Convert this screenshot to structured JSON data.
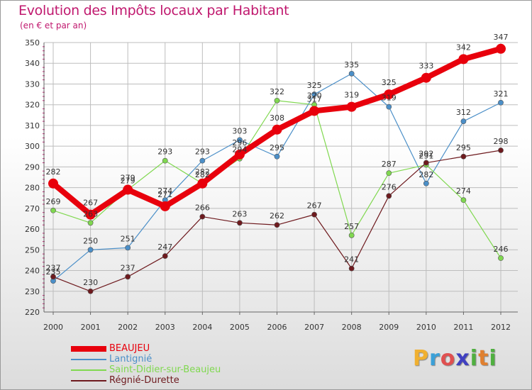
{
  "title": "Evolution des Impôts locaux par Habitant",
  "subtitle": "(en € et par an)",
  "brand": {
    "text": "Proxiti",
    "letters": [
      "P",
      "r",
      "o",
      "x",
      "i",
      "t",
      "i"
    ],
    "colors": [
      "#f0b030",
      "#3aa0d8",
      "#e05050",
      "#4040c0",
      "#50b040",
      "#e08030",
      "#50b040"
    ]
  },
  "chart_data": {
    "type": "line",
    "title": "Evolution des Impôts locaux par Habitant",
    "subtitle": "(en € et par an)",
    "xlabel": "",
    "ylabel": "",
    "ylim": [
      220,
      350
    ],
    "yticks": [
      "220",
      "230",
      "240",
      "250",
      "260",
      "270",
      "280",
      "290",
      "300",
      "310",
      "320",
      "330",
      "340",
      "350"
    ],
    "categories": [
      "2000",
      "2001",
      "2002",
      "2003",
      "2004",
      "2005",
      "2006",
      "2007",
      "2008",
      "2009",
      "2010",
      "2011",
      "2012"
    ],
    "grid": true,
    "legend_position": "bottom-left",
    "series": [
      {
        "name": "BEAUJEU",
        "color": "#e8000c",
        "values": [
          282,
          267,
          279,
          271,
          282,
          296,
          308,
          317,
          319,
          325,
          333,
          342,
          347
        ],
        "labels": [
          "282",
          "267",
          "279",
          "271",
          "282",
          "296",
          "308",
          "317",
          "319",
          "325",
          "333",
          "342",
          "347"
        ]
      },
      {
        "name": "Lantignié",
        "color": "#4b8fc8",
        "values": [
          235,
          250,
          251,
          274,
          293,
          303,
          295,
          325,
          335,
          319,
          282,
          312,
          321
        ],
        "labels": [
          "235",
          "250",
          "251",
          "274",
          "293",
          "303",
          "295",
          "325",
          "335",
          "319",
          "282",
          "312",
          "321"
        ]
      },
      {
        "name": "Saint-Didier-sur-Beaujeu",
        "color": "#80d850",
        "values": [
          269,
          263,
          279,
          293,
          282,
          294,
          322,
          320,
          257,
          287,
          291,
          274,
          246
        ],
        "labels": [
          "269",
          "263",
          "279",
          "293",
          "282",
          "294",
          "322",
          "320",
          "257",
          "287",
          "291",
          "274",
          "246"
        ]
      },
      {
        "name": "Régnié-Durette",
        "color": "#6e1a1e",
        "values": [
          237,
          230,
          237,
          247,
          266,
          263,
          262,
          267,
          241,
          276,
          292,
          295,
          298
        ],
        "labels": [
          "237",
          "230",
          "237",
          "247",
          "266",
          "263",
          "262",
          "267",
          "241",
          "276",
          "292",
          "295",
          "298"
        ]
      }
    ]
  }
}
